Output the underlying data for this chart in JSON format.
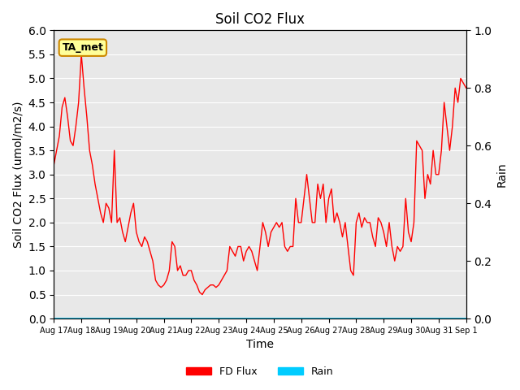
{
  "title": "Soil CO2 Flux",
  "ylabel_left": "Soil CO2 Flux (umol/m2/s)",
  "ylabel_right": "Rain",
  "xlabel": "Time",
  "ylim_left": [
    0.0,
    6.0
  ],
  "ylim_right": [
    0.0,
    1.0
  ],
  "legend_label_flux": "FD Flux",
  "legend_label_rain": "Rain",
  "flux_color": "#ff0000",
  "rain_color": "#00ccff",
  "bg_color": "#e8e8e8",
  "annotation_text": "TA_met",
  "annotation_bg": "#ffff99",
  "annotation_edge": "#cc8800",
  "xtick_labels": [
    "Aug 17",
    "Aug 18",
    "Aug 19",
    "Aug 20",
    "Aug 21",
    "Aug 22",
    "Aug 23",
    "Aug 24",
    "Aug 25",
    "Aug 26",
    "Aug 27",
    "Aug 28",
    "Aug 29",
    "Aug 30",
    "Aug 31",
    "Sep 1"
  ],
  "flux_x": [
    0,
    0.1,
    0.2,
    0.3,
    0.4,
    0.5,
    0.6,
    0.7,
    0.8,
    0.9,
    1.0,
    1.1,
    1.2,
    1.3,
    1.4,
    1.5,
    1.6,
    1.7,
    1.8,
    1.9,
    2.0,
    2.1,
    2.2,
    2.3,
    2.4,
    2.5,
    2.6,
    2.7,
    2.8,
    2.9,
    3.0,
    3.1,
    3.2,
    3.3,
    3.4,
    3.5,
    3.6,
    3.7,
    3.8,
    3.9,
    4.0,
    4.1,
    4.2,
    4.3,
    4.4,
    4.5,
    4.6,
    4.7,
    4.8,
    4.9,
    5.0,
    5.1,
    5.2,
    5.3,
    5.4,
    5.5,
    5.6,
    5.7,
    5.8,
    5.9,
    6.0,
    6.1,
    6.2,
    6.3,
    6.4,
    6.5,
    6.6,
    6.7,
    6.8,
    6.9,
    7.0,
    7.1,
    7.2,
    7.3,
    7.4,
    7.5,
    7.6,
    7.7,
    7.8,
    7.9,
    8.0,
    8.1,
    8.2,
    8.3,
    8.4,
    8.5,
    8.6,
    8.7,
    8.8,
    8.9,
    9.0,
    9.1,
    9.2,
    9.3,
    9.4,
    9.5,
    9.6,
    9.7,
    9.8,
    9.9,
    10.0,
    10.1,
    10.2,
    10.3,
    10.4,
    10.5,
    10.6,
    10.7,
    10.8,
    10.9,
    11.0,
    11.1,
    11.2,
    11.3,
    11.4,
    11.5,
    11.6,
    11.7,
    11.8,
    11.9,
    12.0,
    12.1,
    12.2,
    12.3,
    12.4,
    12.5,
    12.6,
    12.7,
    12.8,
    12.9,
    13.0,
    13.1,
    13.2,
    13.3,
    13.4,
    13.5,
    13.6,
    13.7,
    13.8,
    13.9,
    14.0,
    14.1,
    14.2,
    14.3,
    14.4,
    14.5,
    14.6,
    14.7,
    14.8,
    14.9,
    15.0
  ],
  "flux_y": [
    3.2,
    3.5,
    3.8,
    4.4,
    4.6,
    4.2,
    3.7,
    3.6,
    4.0,
    4.5,
    5.5,
    4.8,
    4.2,
    3.5,
    3.2,
    2.8,
    2.5,
    2.2,
    2.0,
    2.4,
    2.3,
    2.0,
    3.5,
    2.0,
    2.1,
    1.8,
    1.6,
    1.9,
    2.2,
    2.4,
    1.8,
    1.6,
    1.5,
    1.7,
    1.6,
    1.4,
    1.2,
    0.8,
    0.7,
    0.65,
    0.7,
    0.8,
    1.0,
    1.6,
    1.5,
    1.0,
    1.1,
    0.9,
    0.9,
    1.0,
    1.0,
    0.8,
    0.7,
    0.55,
    0.5,
    0.6,
    0.65,
    0.7,
    0.7,
    0.65,
    0.7,
    0.8,
    0.9,
    1.0,
    1.5,
    1.4,
    1.3,
    1.5,
    1.5,
    1.2,
    1.4,
    1.5,
    1.4,
    1.2,
    1.0,
    1.5,
    2.0,
    1.8,
    1.5,
    1.8,
    1.9,
    2.0,
    1.9,
    2.0,
    1.5,
    1.4,
    1.5,
    1.5,
    2.5,
    2.0,
    2.0,
    2.5,
    3.0,
    2.5,
    2.0,
    2.0,
    2.8,
    2.5,
    2.8,
    2.0,
    2.5,
    2.7,
    2.0,
    2.2,
    2.0,
    1.7,
    2.0,
    1.5,
    1.0,
    0.9,
    2.0,
    2.2,
    1.9,
    2.1,
    2.0,
    2.0,
    1.7,
    1.5,
    2.1,
    2.0,
    1.8,
    1.5,
    2.0,
    1.5,
    1.2,
    1.5,
    1.4,
    1.5,
    2.5,
    1.8,
    1.6,
    2.0,
    3.7,
    3.6,
    3.5,
    2.5,
    3.0,
    2.8,
    3.5,
    3.0,
    3.0,
    3.5,
    4.5,
    4.0,
    3.5,
    4.0,
    4.8,
    4.5,
    5.0,
    4.9,
    4.8
  ],
  "rain_y": [
    0.0,
    0.0,
    0.0,
    0.0,
    0.0,
    0.0,
    0.0,
    0.0,
    0.0,
    0.0,
    0.0,
    0.0,
    0.0,
    0.0,
    0.0,
    0.0,
    0.0,
    0.0,
    0.0,
    0.0,
    0.0,
    0.0,
    0.0,
    0.0,
    0.0,
    0.0,
    0.0,
    0.0,
    0.0,
    0.0,
    0.0,
    0.0,
    0.0,
    0.0,
    0.0,
    0.0,
    0.0,
    0.0,
    0.0,
    0.0,
    0.0,
    0.0,
    0.0,
    0.0,
    0.0,
    0.0,
    0.0,
    0.0,
    0.0,
    0.0,
    0.0,
    0.0,
    0.0,
    0.0,
    0.0,
    0.0,
    0.0,
    0.0,
    0.0,
    0.0,
    0.0,
    0.0,
    0.0,
    0.0,
    0.0,
    0.0,
    0.0,
    0.0,
    0.0,
    0.0,
    0.0,
    0.0,
    0.0,
    0.0,
    0.0,
    0.0,
    0.0,
    0.0,
    0.0,
    0.0,
    0.0,
    0.0,
    0.0,
    0.0,
    0.0,
    0.0,
    0.0,
    0.0,
    0.0,
    0.0,
    0.0,
    0.0,
    0.0,
    0.0,
    0.0,
    0.0,
    0.0,
    0.0,
    0.0,
    0.0,
    0.0,
    0.0,
    0.0,
    0.0,
    0.0,
    0.0,
    0.0,
    0.0,
    0.0,
    0.0,
    0.0,
    0.0,
    0.0,
    0.0,
    0.0,
    0.0,
    0.0,
    0.0,
    0.0,
    0.0,
    0.0,
    0.0,
    0.0,
    0.0,
    0.0,
    0.0,
    0.0,
    0.0,
    0.0,
    0.0,
    0.0,
    0.0,
    0.0,
    0.0,
    0.0,
    0.0,
    0.0,
    0.0,
    0.0,
    0.0,
    0.0,
    0.0,
    0.0,
    0.0,
    0.0,
    0.0,
    0.0,
    0.0,
    0.0,
    0.0,
    0.0
  ]
}
